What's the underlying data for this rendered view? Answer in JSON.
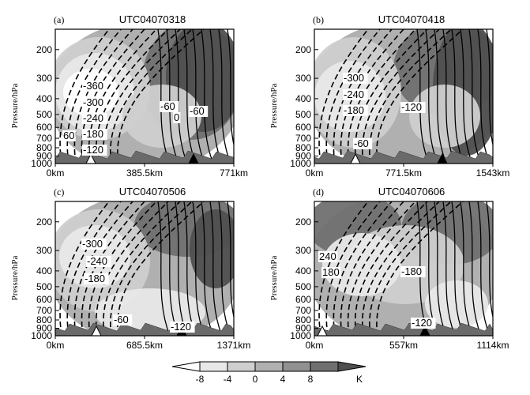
{
  "chart_data": [
    {
      "type": "cross-section",
      "panel_label": "(a)",
      "title": "UTC04070318",
      "ylabel": "Pressure/hPa",
      "y_ticks": [
        "200",
        "300",
        "400",
        "500",
        "600",
        "700",
        "800",
        "900",
        "1000"
      ],
      "x_ticks": [
        "0km",
        "385.5km",
        "771km"
      ],
      "contour_labels": [
        "-360",
        "-300",
        "-240",
        "-180",
        "-120",
        "60",
        "0",
        "-60",
        "-60"
      ]
    },
    {
      "type": "cross-section",
      "panel_label": "(b)",
      "title": "UTC04070418",
      "ylabel": "Pressure/hPa",
      "y_ticks": [
        "200",
        "300",
        "400",
        "500",
        "600",
        "700",
        "800",
        "900",
        "1000"
      ],
      "x_ticks": [
        "0km",
        "771.5km",
        "1543km"
      ],
      "contour_labels": [
        "-300",
        "-240",
        "-180",
        "-120",
        "-60"
      ]
    },
    {
      "type": "cross-section",
      "panel_label": "(c)",
      "title": "UTC04070506",
      "ylabel": "Pressure/hPa",
      "y_ticks": [
        "200",
        "300",
        "400",
        "500",
        "600",
        "700",
        "800",
        "900",
        "1000"
      ],
      "x_ticks": [
        "0km",
        "685.5km",
        "1371km"
      ],
      "contour_labels": [
        "-300",
        "-240",
        "-180",
        "-60",
        "-120"
      ]
    },
    {
      "type": "cross-section",
      "panel_label": "(d)",
      "title": "UTC04070606",
      "ylabel": "Pressure/hPa",
      "y_ticks": [
        "200",
        "300",
        "400",
        "500",
        "600",
        "700",
        "800",
        "900",
        "1000"
      ],
      "x_ticks": [
        "0km",
        "557km",
        "1114km"
      ],
      "contour_labels": [
        "240",
        "180",
        "-180",
        "-120"
      ]
    }
  ],
  "colorbar": {
    "ticks": [
      "-8",
      "-4",
      "0",
      "4",
      "8"
    ],
    "unit": "K",
    "colors": [
      "#ffffff",
      "#e8e8e8",
      "#cfcfcf",
      "#b0b0b0",
      "#919191",
      "#707070",
      "#4f4f4f"
    ]
  }
}
